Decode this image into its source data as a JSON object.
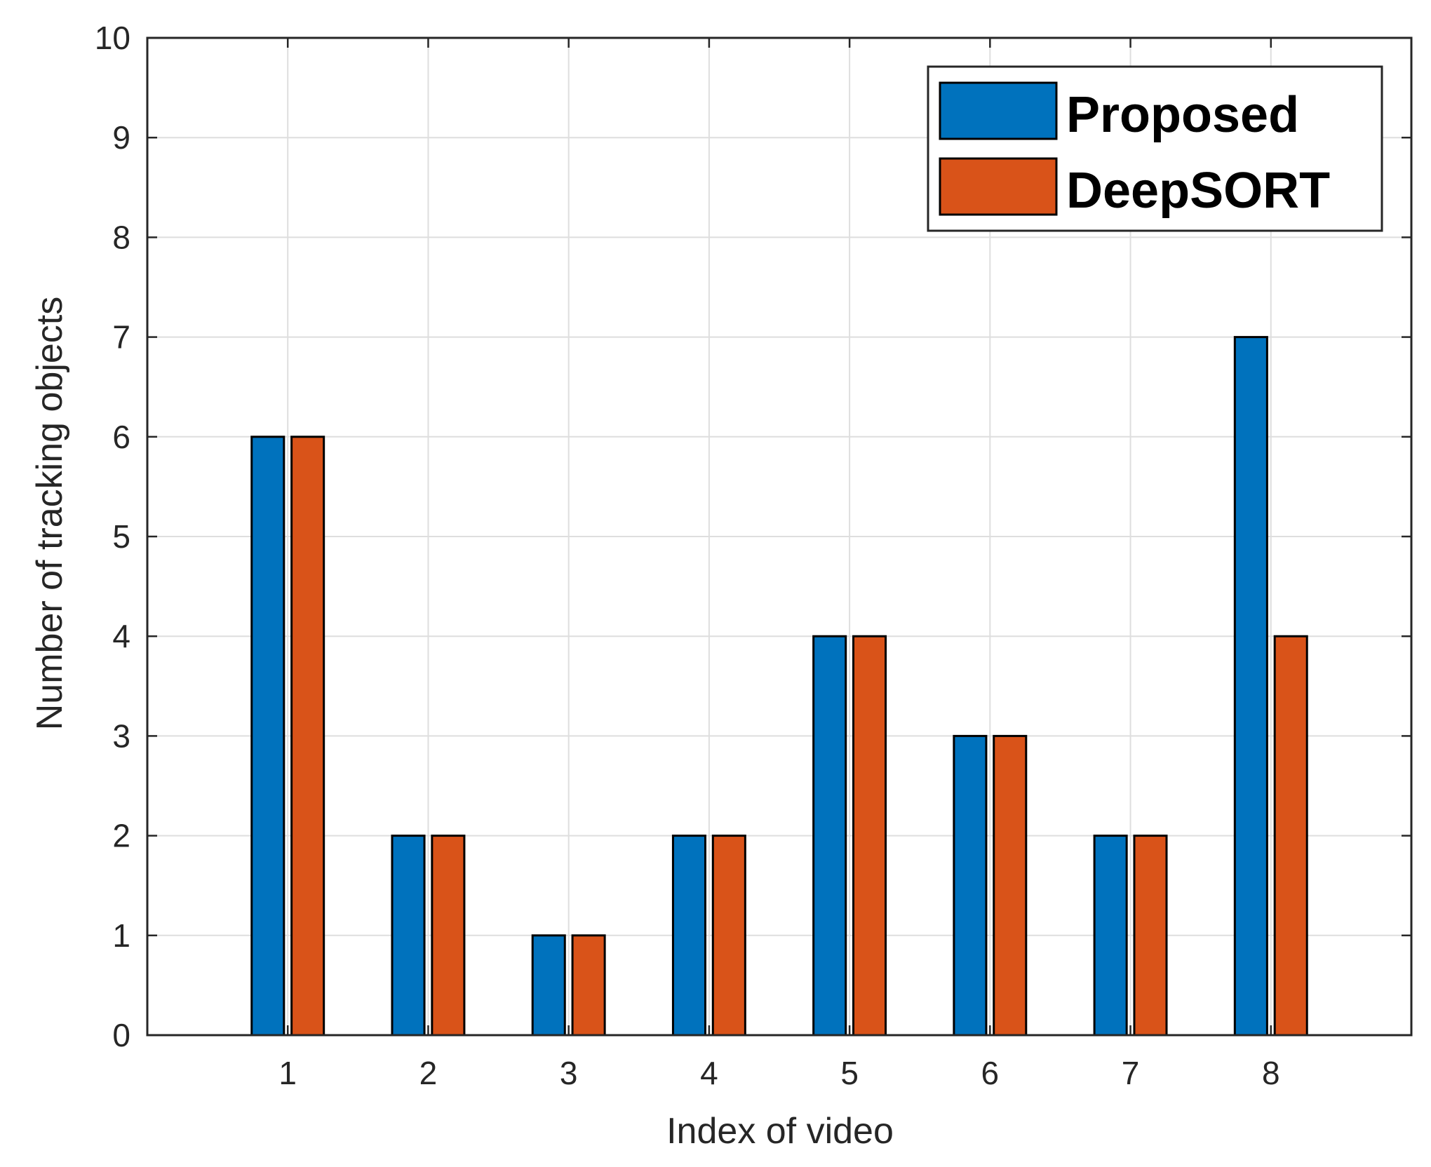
{
  "chart_data": {
    "type": "bar",
    "title": "",
    "xlabel": "Index of video",
    "ylabel": "Number of tracking objects",
    "categories": [
      "1",
      "2",
      "3",
      "4",
      "5",
      "6",
      "7",
      "8"
    ],
    "series": [
      {
        "name": "Proposed",
        "color": "#0072BD",
        "values": [
          6,
          2,
          1,
          2,
          4,
          3,
          2,
          7
        ]
      },
      {
        "name": "DeepSORT",
        "color": "#D95319",
        "values": [
          6,
          2,
          1,
          2,
          4,
          3,
          2,
          4
        ]
      }
    ],
    "xlim": [
      0,
      9
    ],
    "ylim": [
      0,
      10
    ],
    "yticks": [
      "0",
      "1",
      "2",
      "3",
      "4",
      "5",
      "6",
      "7",
      "8",
      "9",
      "10"
    ],
    "grid": true,
    "legend_position": "top-right"
  }
}
